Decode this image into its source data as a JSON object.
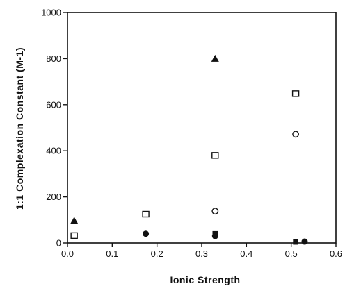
{
  "chart_data": {
    "type": "scatter",
    "xlabel": "Ionic  Strength",
    "ylabel": "1:1  Complexation  Constant  (M-1)",
    "xlim": [
      0,
      0.6
    ],
    "ylim": [
      0,
      1000
    ],
    "xticks": [
      "0.0",
      "0.1",
      "0.2",
      "0.3",
      "0.4",
      "0.5",
      "0.6"
    ],
    "yticks": [
      "0",
      "200",
      "400",
      "600",
      "800",
      "1000"
    ],
    "grid": false,
    "series": [
      {
        "marker": "filled-triangle",
        "points": [
          [
            0.015,
            97
          ],
          [
            0.33,
            800
          ]
        ]
      },
      {
        "marker": "open-square",
        "points": [
          [
            0.015,
            32
          ],
          [
            0.175,
            125
          ],
          [
            0.33,
            380
          ],
          [
            0.51,
            648
          ]
        ]
      },
      {
        "marker": "open-circle",
        "points": [
          [
            0.33,
            138
          ],
          [
            0.51,
            472
          ]
        ]
      },
      {
        "marker": "filled-circle",
        "points": [
          [
            0.175,
            40
          ],
          [
            0.33,
            30
          ],
          [
            0.53,
            6
          ]
        ]
      },
      {
        "marker": "filled-square",
        "points": [
          [
            0.33,
            40
          ],
          [
            0.51,
            4
          ]
        ]
      }
    ]
  }
}
